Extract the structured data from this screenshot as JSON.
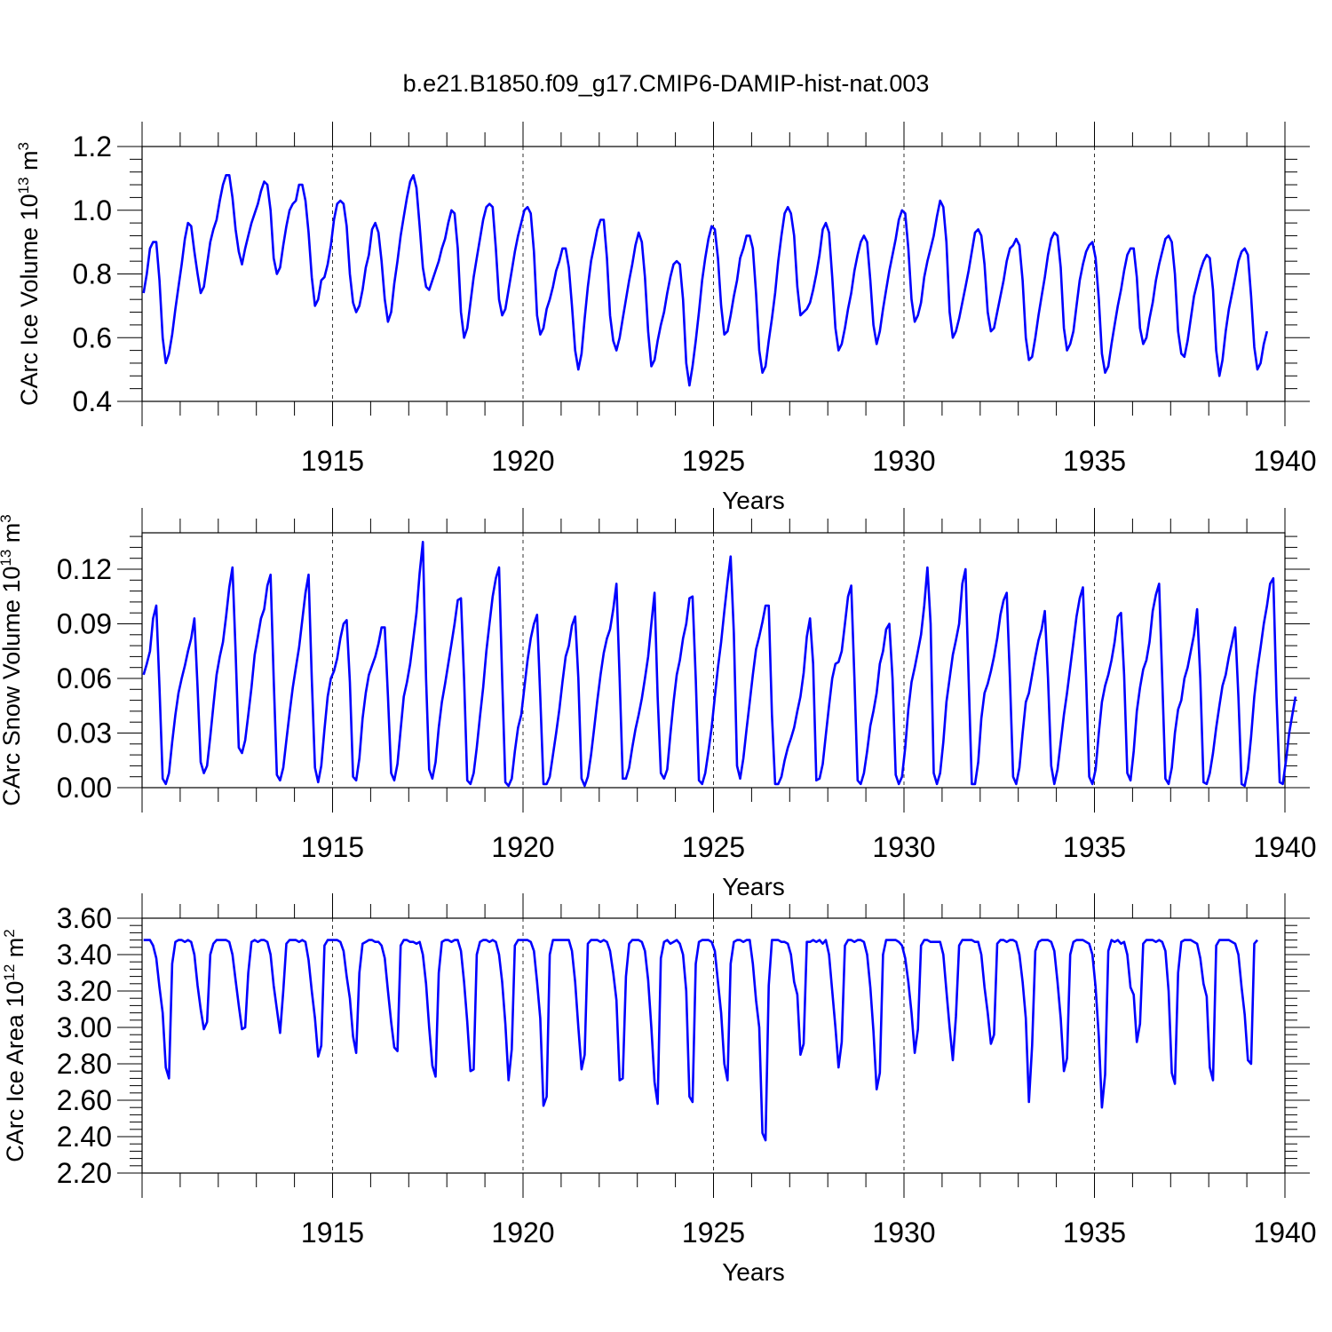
{
  "title": "b.e21.B1850.f09_g17.CMIP6-DAMIP-hist-nat.003",
  "line_color": "#0000ff",
  "chart_data": [
    {
      "type": "line",
      "name": "ice-volume",
      "ylabel_text": "CArc Ice Volume 10",
      "ylabel_exp": "13",
      "ylabel_unit": " m",
      "ylabel_unit_exp": "3",
      "xlabel": "Years",
      "xlim": [
        1910.0,
        1940.0
      ],
      "xticks": [
        "1915",
        "1920",
        "1925",
        "1930",
        "1935",
        "1940"
      ],
      "ylim": [
        0.4,
        1.2
      ],
      "yticks": [
        "0.4",
        "0.6",
        "0.8",
        "1.0",
        "1.2"
      ],
      "start_year": 1910.04,
      "step": 0.0833,
      "values": [
        0.74,
        0.8,
        0.88,
        0.9,
        0.9,
        0.78,
        0.6,
        0.52,
        0.55,
        0.61,
        0.69,
        0.76,
        0.83,
        0.91,
        0.96,
        0.95,
        0.87,
        0.8,
        0.74,
        0.76,
        0.83,
        0.9,
        0.94,
        0.97,
        1.03,
        1.08,
        1.11,
        1.11,
        1.04,
        0.94,
        0.87,
        0.83,
        0.88,
        0.92,
        0.96,
        0.99,
        1.02,
        1.06,
        1.09,
        1.08,
        1.0,
        0.85,
        0.8,
        0.82,
        0.89,
        0.95,
        1.0,
        1.02,
        1.03,
        1.08,
        1.08,
        1.03,
        0.93,
        0.79,
        0.7,
        0.72,
        0.78,
        0.79,
        0.83,
        0.89,
        0.97,
        1.02,
        1.03,
        1.02,
        0.95,
        0.8,
        0.71,
        0.68,
        0.7,
        0.75,
        0.82,
        0.86,
        0.94,
        0.96,
        0.93,
        0.84,
        0.72,
        0.65,
        0.68,
        0.77,
        0.84,
        0.92,
        0.98,
        1.04,
        1.09,
        1.11,
        1.07,
        0.95,
        0.82,
        0.76,
        0.75,
        0.78,
        0.81,
        0.84,
        0.88,
        0.91,
        0.96,
        1.0,
        0.99,
        0.88,
        0.68,
        0.6,
        0.63,
        0.71,
        0.79,
        0.85,
        0.91,
        0.97,
        1.01,
        1.02,
        1.01,
        0.88,
        0.72,
        0.67,
        0.69,
        0.75,
        0.81,
        0.87,
        0.92,
        0.96,
        1.0,
        1.01,
        0.99,
        0.87,
        0.67,
        0.61,
        0.63,
        0.69,
        0.72,
        0.76,
        0.81,
        0.84,
        0.88,
        0.88,
        0.82,
        0.7,
        0.56,
        0.5,
        0.55,
        0.66,
        0.76,
        0.84,
        0.89,
        0.94,
        0.97,
        0.97,
        0.85,
        0.67,
        0.59,
        0.56,
        0.6,
        0.66,
        0.72,
        0.78,
        0.83,
        0.89,
        0.93,
        0.9,
        0.79,
        0.62,
        0.51,
        0.53,
        0.59,
        0.64,
        0.68,
        0.74,
        0.79,
        0.83,
        0.84,
        0.83,
        0.72,
        0.52,
        0.45,
        0.51,
        0.59,
        0.68,
        0.78,
        0.85,
        0.91,
        0.95,
        0.94,
        0.85,
        0.7,
        0.61,
        0.62,
        0.67,
        0.73,
        0.78,
        0.85,
        0.88,
        0.92,
        0.92,
        0.88,
        0.74,
        0.56,
        0.49,
        0.51,
        0.59,
        0.66,
        0.74,
        0.84,
        0.92,
        0.99,
        1.01,
        0.99,
        0.92,
        0.76,
        0.67,
        0.68,
        0.69,
        0.71,
        0.75,
        0.8,
        0.86,
        0.94,
        0.96,
        0.93,
        0.79,
        0.63,
        0.56,
        0.58,
        0.63,
        0.69,
        0.74,
        0.81,
        0.86,
        0.9,
        0.92,
        0.9,
        0.78,
        0.64,
        0.58,
        0.62,
        0.69,
        0.75,
        0.81,
        0.86,
        0.91,
        0.97,
        1.0,
        0.99,
        0.88,
        0.72,
        0.65,
        0.67,
        0.71,
        0.79,
        0.84,
        0.88,
        0.92,
        0.98,
        1.03,
        1.01,
        0.9,
        0.68,
        0.6,
        0.62,
        0.66,
        0.71,
        0.76,
        0.81,
        0.87,
        0.93,
        0.94,
        0.92,
        0.83,
        0.68,
        0.62,
        0.63,
        0.68,
        0.73,
        0.78,
        0.84,
        0.88,
        0.89,
        0.91,
        0.89,
        0.78,
        0.6,
        0.53,
        0.54,
        0.6,
        0.67,
        0.73,
        0.79,
        0.86,
        0.91,
        0.93,
        0.92,
        0.82,
        0.63,
        0.56,
        0.58,
        0.62,
        0.7,
        0.78,
        0.83,
        0.87,
        0.89,
        0.9,
        0.85,
        0.72,
        0.55,
        0.49,
        0.51,
        0.58,
        0.64,
        0.7,
        0.75,
        0.81,
        0.86,
        0.88,
        0.88,
        0.79,
        0.63,
        0.58,
        0.6,
        0.66,
        0.71,
        0.78,
        0.83,
        0.87,
        0.91,
        0.92,
        0.9,
        0.8,
        0.62,
        0.55,
        0.54,
        0.59,
        0.66,
        0.73,
        0.77,
        0.81,
        0.84,
        0.86,
        0.85,
        0.75,
        0.56,
        0.48,
        0.53,
        0.62,
        0.69,
        0.74,
        0.79,
        0.84,
        0.87,
        0.88,
        0.86,
        0.73,
        0.57,
        0.5,
        0.52,
        0.58,
        0.62
      ]
    },
    {
      "type": "line",
      "name": "snow-volume",
      "ylabel_text": "CArc Snow Volume 10",
      "ylabel_exp": "13",
      "ylabel_unit": " m",
      "ylabel_unit_exp": "3",
      "xlabel": "Years",
      "xlim": [
        1910.0,
        1940.0
      ],
      "xticks": [
        "1915",
        "1920",
        "1925",
        "1930",
        "1935",
        "1940"
      ],
      "ylim": [
        0.0,
        0.14
      ],
      "yticks": [
        "0.00",
        "0.03",
        "0.06",
        "0.09",
        "0.12"
      ],
      "start_year": 1910.04,
      "step": 0.0833,
      "values": [
        0.062,
        0.068,
        0.075,
        0.093,
        0.1,
        0.055,
        0.005,
        0.002,
        0.008,
        0.025,
        0.04,
        0.052,
        0.06,
        0.067,
        0.075,
        0.082,
        0.093,
        0.055,
        0.014,
        0.008,
        0.012,
        0.028,
        0.045,
        0.062,
        0.072,
        0.08,
        0.094,
        0.11,
        0.121,
        0.075,
        0.022,
        0.019,
        0.026,
        0.04,
        0.055,
        0.073,
        0.083,
        0.093,
        0.098,
        0.111,
        0.117,
        0.06,
        0.007,
        0.004,
        0.011,
        0.026,
        0.041,
        0.055,
        0.066,
        0.077,
        0.092,
        0.107,
        0.117,
        0.06,
        0.011,
        0.003,
        0.012,
        0.032,
        0.05,
        0.06,
        0.064,
        0.071,
        0.082,
        0.09,
        0.092,
        0.058,
        0.006,
        0.004,
        0.016,
        0.038,
        0.052,
        0.062,
        0.067,
        0.072,
        0.079,
        0.088,
        0.088,
        0.05,
        0.008,
        0.004,
        0.013,
        0.032,
        0.05,
        0.058,
        0.068,
        0.082,
        0.096,
        0.118,
        0.135,
        0.06,
        0.01,
        0.005,
        0.014,
        0.033,
        0.047,
        0.057,
        0.068,
        0.079,
        0.09,
        0.103,
        0.104,
        0.06,
        0.004,
        0.002,
        0.008,
        0.022,
        0.039,
        0.055,
        0.075,
        0.09,
        0.105,
        0.115,
        0.121,
        0.06,
        0.003,
        0.001,
        0.005,
        0.02,
        0.033,
        0.04,
        0.055,
        0.07,
        0.082,
        0.09,
        0.095,
        0.05,
        0.002,
        0.002,
        0.006,
        0.018,
        0.03,
        0.043,
        0.058,
        0.072,
        0.078,
        0.089,
        0.094,
        0.06,
        0.005,
        0.001,
        0.006,
        0.018,
        0.033,
        0.048,
        0.062,
        0.074,
        0.082,
        0.087,
        0.098,
        0.112,
        0.06,
        0.005,
        0.005,
        0.011,
        0.022,
        0.032,
        0.04,
        0.049,
        0.06,
        0.072,
        0.09,
        0.107,
        0.05,
        0.008,
        0.005,
        0.01,
        0.029,
        0.047,
        0.062,
        0.07,
        0.082,
        0.09,
        0.104,
        0.105,
        0.06,
        0.004,
        0.002,
        0.008,
        0.02,
        0.033,
        0.05,
        0.066,
        0.08,
        0.097,
        0.113,
        0.127,
        0.085,
        0.012,
        0.005,
        0.016,
        0.032,
        0.047,
        0.062,
        0.076,
        0.083,
        0.091,
        0.1,
        0.1,
        0.04,
        0.002,
        0.002,
        0.006,
        0.015,
        0.022,
        0.027,
        0.033,
        0.042,
        0.05,
        0.063,
        0.083,
        0.093,
        0.068,
        0.004,
        0.005,
        0.013,
        0.029,
        0.045,
        0.06,
        0.068,
        0.069,
        0.075,
        0.09,
        0.105,
        0.111,
        0.06,
        0.004,
        0.002,
        0.008,
        0.02,
        0.034,
        0.042,
        0.052,
        0.068,
        0.075,
        0.087,
        0.09,
        0.06,
        0.007,
        0.002,
        0.006,
        0.022,
        0.043,
        0.058,
        0.066,
        0.075,
        0.084,
        0.1,
        0.121,
        0.09,
        0.008,
        0.002,
        0.008,
        0.025,
        0.047,
        0.06,
        0.073,
        0.081,
        0.09,
        0.112,
        0.12,
        0.06,
        0.002,
        0.002,
        0.014,
        0.038,
        0.052,
        0.057,
        0.064,
        0.072,
        0.082,
        0.095,
        0.103,
        0.107,
        0.06,
        0.006,
        0.002,
        0.011,
        0.03,
        0.047,
        0.052,
        0.062,
        0.072,
        0.081,
        0.087,
        0.097,
        0.06,
        0.012,
        0.002,
        0.01,
        0.025,
        0.04,
        0.052,
        0.066,
        0.08,
        0.094,
        0.104,
        0.11,
        0.06,
        0.006,
        0.002,
        0.01,
        0.03,
        0.047,
        0.056,
        0.062,
        0.07,
        0.08,
        0.094,
        0.096,
        0.062,
        0.008,
        0.004,
        0.02,
        0.042,
        0.055,
        0.065,
        0.07,
        0.08,
        0.097,
        0.106,
        0.112,
        0.06,
        0.005,
        0.002,
        0.011,
        0.03,
        0.043,
        0.048,
        0.06,
        0.066,
        0.075,
        0.084,
        0.098,
        0.06,
        0.003,
        0.002,
        0.008,
        0.019,
        0.033,
        0.045,
        0.056,
        0.062,
        0.072,
        0.08,
        0.088,
        0.05,
        0.002,
        0.001,
        0.01,
        0.028,
        0.05,
        0.065,
        0.077,
        0.09,
        0.1,
        0.112,
        0.115,
        0.05,
        0.003,
        0.002,
        0.015,
        0.03,
        0.04,
        0.05
      ]
    },
    {
      "type": "line",
      "name": "ice-area",
      "ylabel_text": "CArc Ice Area 10",
      "ylabel_exp": "12",
      "ylabel_unit": " m",
      "ylabel_unit_exp": "2",
      "xlabel": "Years",
      "xlim": [
        1910.0,
        1940.0
      ],
      "xticks": [
        "1915",
        "1920",
        "1925",
        "1930",
        "1935",
        "1940"
      ],
      "ylim": [
        2.2,
        3.6
      ],
      "yticks": [
        "2.20",
        "2.40",
        "2.60",
        "2.80",
        "3.00",
        "3.20",
        "3.40",
        "3.60"
      ],
      "start_year": 1910.04,
      "step": 0.0833,
      "values": [
        3.48,
        3.48,
        3.48,
        3.45,
        3.38,
        3.22,
        3.08,
        2.78,
        2.72,
        3.35,
        3.47,
        3.48,
        3.48,
        3.47,
        3.48,
        3.47,
        3.4,
        3.23,
        3.1,
        2.99,
        3.03,
        3.4,
        3.46,
        3.48,
        3.48,
        3.48,
        3.48,
        3.47,
        3.4,
        3.26,
        3.12,
        2.99,
        3.0,
        3.3,
        3.47,
        3.48,
        3.47,
        3.48,
        3.48,
        3.47,
        3.4,
        3.23,
        3.1,
        2.97,
        3.2,
        3.46,
        3.48,
        3.48,
        3.48,
        3.47,
        3.48,
        3.47,
        3.37,
        3.2,
        3.05,
        2.84,
        2.9,
        3.45,
        3.48,
        3.48,
        3.48,
        3.48,
        3.47,
        3.42,
        3.28,
        3.16,
        2.95,
        2.86,
        3.3,
        3.46,
        3.47,
        3.48,
        3.48,
        3.47,
        3.47,
        3.45,
        3.38,
        3.2,
        3.03,
        2.89,
        2.87,
        3.45,
        3.48,
        3.48,
        3.47,
        3.47,
        3.46,
        3.47,
        3.4,
        3.24,
        3.0,
        2.79,
        2.73,
        3.3,
        3.47,
        3.48,
        3.48,
        3.47,
        3.48,
        3.48,
        3.42,
        3.25,
        3.03,
        2.76,
        2.77,
        3.4,
        3.47,
        3.48,
        3.48,
        3.47,
        3.48,
        3.47,
        3.4,
        3.25,
        3.02,
        2.71,
        2.88,
        3.45,
        3.48,
        3.48,
        3.48,
        3.48,
        3.47,
        3.42,
        3.25,
        3.05,
        2.57,
        2.62,
        3.4,
        3.48,
        3.48,
        3.48,
        3.48,
        3.48,
        3.48,
        3.42,
        3.25,
        3.0,
        2.77,
        2.85,
        3.46,
        3.48,
        3.48,
        3.48,
        3.47,
        3.48,
        3.47,
        3.42,
        3.3,
        3.15,
        2.71,
        2.72,
        3.28,
        3.46,
        3.48,
        3.48,
        3.48,
        3.47,
        3.42,
        3.26,
        3.0,
        2.7,
        2.58,
        3.38,
        3.47,
        3.48,
        3.46,
        3.47,
        3.48,
        3.46,
        3.4,
        3.2,
        2.62,
        2.59,
        3.35,
        3.47,
        3.48,
        3.48,
        3.48,
        3.47,
        3.42,
        3.25,
        3.08,
        2.8,
        2.71,
        3.35,
        3.47,
        3.48,
        3.48,
        3.47,
        3.48,
        3.48,
        3.35,
        3.15,
        3.0,
        2.42,
        2.38,
        3.23,
        3.48,
        3.48,
        3.48,
        3.47,
        3.47,
        3.46,
        3.4,
        3.25,
        3.18,
        2.85,
        2.91,
        3.47,
        3.47,
        3.48,
        3.47,
        3.48,
        3.46,
        3.48,
        3.4,
        3.2,
        3.0,
        2.78,
        2.92,
        3.45,
        3.48,
        3.48,
        3.47,
        3.48,
        3.48,
        3.47,
        3.4,
        3.22,
        2.98,
        2.66,
        2.75,
        3.4,
        3.48,
        3.48,
        3.48,
        3.48,
        3.47,
        3.45,
        3.38,
        3.25,
        3.08,
        2.86,
        2.99,
        3.45,
        3.48,
        3.48,
        3.47,
        3.47,
        3.47,
        3.47,
        3.4,
        3.2,
        3.0,
        2.82,
        3.06,
        3.45,
        3.48,
        3.48,
        3.48,
        3.48,
        3.47,
        3.47,
        3.4,
        3.22,
        3.08,
        2.91,
        2.96,
        3.46,
        3.48,
        3.48,
        3.47,
        3.48,
        3.48,
        3.47,
        3.4,
        3.25,
        3.05,
        2.59,
        2.9,
        3.42,
        3.47,
        3.48,
        3.48,
        3.48,
        3.47,
        3.42,
        3.25,
        3.05,
        2.76,
        2.83,
        3.4,
        3.47,
        3.48,
        3.48,
        3.48,
        3.47,
        3.46,
        3.4,
        3.22,
        2.95,
        2.56,
        2.74,
        3.42,
        3.48,
        3.47,
        3.48,
        3.46,
        3.47,
        3.4,
        3.22,
        3.18,
        2.92,
        3.02,
        3.46,
        3.48,
        3.48,
        3.48,
        3.47,
        3.48,
        3.47,
        3.42,
        3.2,
        2.75,
        2.69,
        3.3,
        3.47,
        3.48,
        3.48,
        3.48,
        3.47,
        3.46,
        3.38,
        3.24,
        3.17,
        2.78,
        2.71,
        3.45,
        3.48,
        3.48,
        3.48,
        3.48,
        3.47,
        3.46,
        3.4,
        3.22,
        3.07,
        2.82,
        2.8,
        3.46,
        3.48
      ]
    }
  ]
}
